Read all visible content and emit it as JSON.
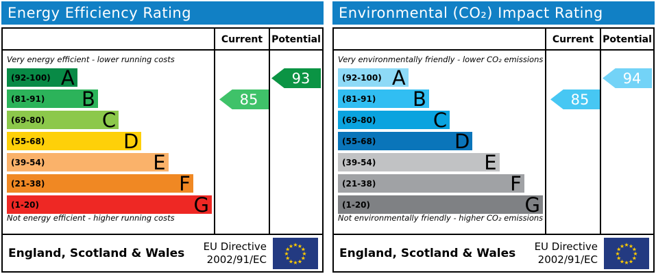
{
  "colors": {
    "header_bg": "#1180c5",
    "header_text": "#ffffff",
    "border": "#000000",
    "eu_flag_bg": "#233a81",
    "eu_star": "#ffcc00"
  },
  "chart_data": [
    {
      "type": "bar",
      "title": "Energy Efficiency Rating",
      "columns": [
        "Current",
        "Potential"
      ],
      "top_note": "Very energy efficient - lower running costs",
      "bottom_note": "Not energy efficient - higher running costs",
      "scale": [
        1,
        100
      ],
      "bands": [
        {
          "letter": "A",
          "range": "(92-100)",
          "min": 92,
          "max": 100,
          "color": "#088a46",
          "width_pct": 34
        },
        {
          "letter": "B",
          "range": "(81-91)",
          "min": 81,
          "max": 91,
          "color": "#2cb35a",
          "width_pct": 44
        },
        {
          "letter": "C",
          "range": "(69-80)",
          "min": 69,
          "max": 80,
          "color": "#8cc84b",
          "width_pct": 54
        },
        {
          "letter": "D",
          "range": "(55-68)",
          "min": 55,
          "max": 68,
          "color": "#fed009",
          "width_pct": 65
        },
        {
          "letter": "E",
          "range": "(39-54)",
          "min": 39,
          "max": 54,
          "color": "#fab26a",
          "width_pct": 78
        },
        {
          "letter": "F",
          "range": "(21-38)",
          "min": 21,
          "max": 38,
          "color": "#f08823",
          "width_pct": 90
        },
        {
          "letter": "G",
          "range": "(1-20)",
          "min": 1,
          "max": 20,
          "color": "#ee2824",
          "width_pct": 99
        }
      ],
      "current": {
        "value": 85,
        "band": "B",
        "band_index": 1,
        "color": "#3fc269"
      },
      "potential": {
        "value": 93,
        "band": "A",
        "band_index": 0,
        "color": "#0b9444"
      },
      "footer_region": "England, Scotland & Wales",
      "eu_directive": [
        "EU Directive",
        "2002/91/EC"
      ]
    },
    {
      "type": "bar",
      "title": "Environmental (CO₂) Impact Rating",
      "columns": [
        "Current",
        "Potential"
      ],
      "top_note": "Very environmentally friendly - lower CO₂ emissions",
      "bottom_note": "Not environmentally friendly - higher CO₂ emissions",
      "scale": [
        1,
        100
      ],
      "bands": [
        {
          "letter": "A",
          "range": "(92-100)",
          "min": 92,
          "max": 100,
          "color": "#8edaf7",
          "width_pct": 34
        },
        {
          "letter": "B",
          "range": "(81-91)",
          "min": 81,
          "max": 91,
          "color": "#31bef2",
          "width_pct": 44
        },
        {
          "letter": "C",
          "range": "(69-80)",
          "min": 69,
          "max": 80,
          "color": "#0aa3df",
          "width_pct": 54
        },
        {
          "letter": "D",
          "range": "(55-68)",
          "min": 55,
          "max": 68,
          "color": "#0a75ba",
          "width_pct": 65
        },
        {
          "letter": "E",
          "range": "(39-54)",
          "min": 39,
          "max": 54,
          "color": "#c1c2c4",
          "width_pct": 78
        },
        {
          "letter": "F",
          "range": "(21-38)",
          "min": 21,
          "max": 38,
          "color": "#a0a2a5",
          "width_pct": 90
        },
        {
          "letter": "G",
          "range": "(1-20)",
          "min": 1,
          "max": 20,
          "color": "#7f8184",
          "width_pct": 99
        }
      ],
      "current": {
        "value": 85,
        "band": "B",
        "band_index": 1,
        "color": "#47c7f3"
      },
      "potential": {
        "value": 94,
        "band": "A",
        "band_index": 0,
        "color": "#73d3f7"
      },
      "footer_region": "England, Scotland & Wales",
      "eu_directive": [
        "EU Directive",
        "2002/91/EC"
      ]
    }
  ]
}
